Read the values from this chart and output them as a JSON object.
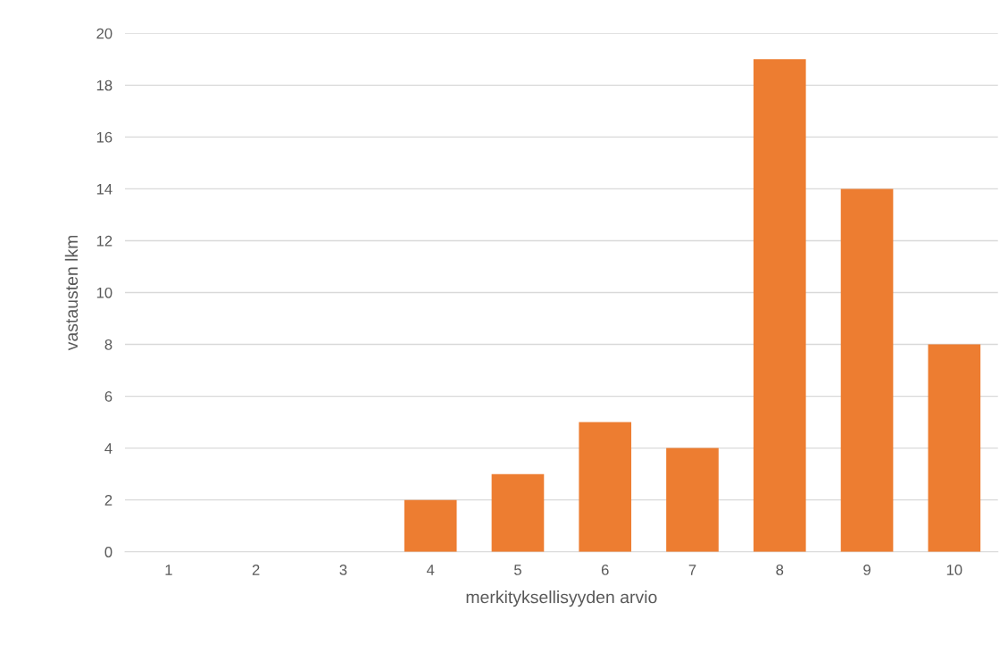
{
  "chart_data": {
    "type": "bar",
    "xlabel": "merkityksellisyyden arvio",
    "ylabel": "vastausten lkm",
    "categories": [
      "1",
      "2",
      "3",
      "4",
      "5",
      "6",
      "7",
      "8",
      "9",
      "10"
    ],
    "values": [
      0,
      0,
      0,
      2,
      3,
      5,
      4,
      19,
      14,
      8
    ],
    "color": "#ed7d31",
    "ylim": [
      0,
      20
    ],
    "yticks": [
      0,
      2,
      4,
      6,
      8,
      10,
      12,
      14,
      16,
      18,
      20
    ],
    "grid": "y",
    "legend": false
  }
}
